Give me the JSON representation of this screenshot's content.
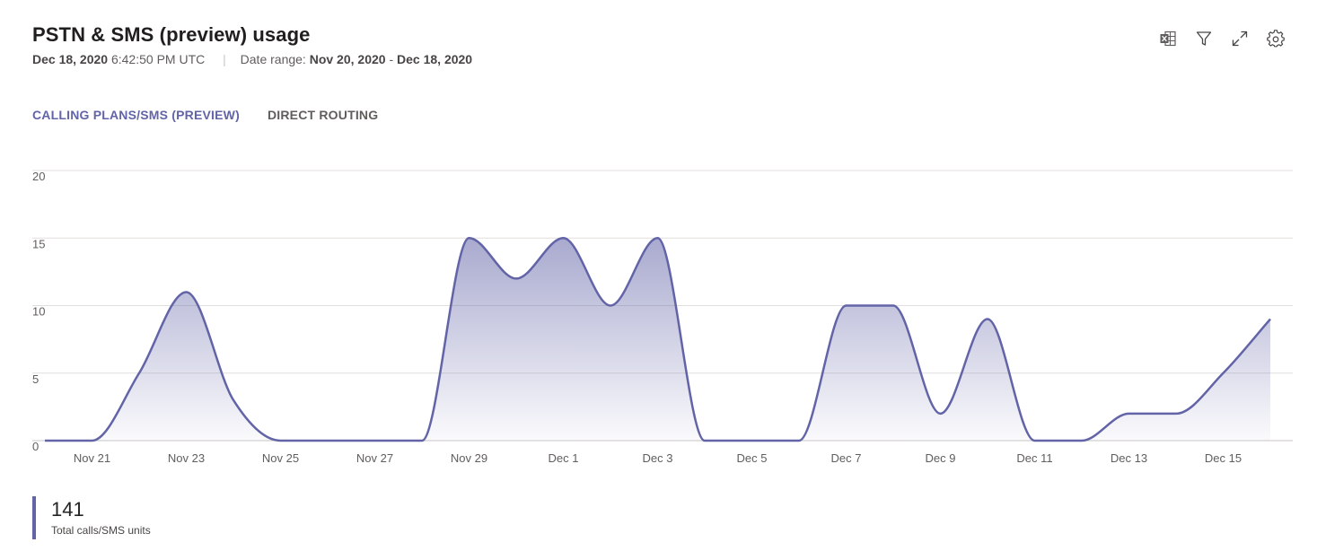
{
  "header": {
    "title": "PSTN & SMS (preview) usage",
    "timestamp_date": "Dec 18, 2020",
    "timestamp_time": "6:42:50 PM UTC",
    "date_range_label": "Date range:",
    "date_range_start": "Nov 20, 2020",
    "date_range_dash": "-",
    "date_range_end": "Dec 18, 2020"
  },
  "toolbar": {
    "icons": [
      "excel-icon",
      "filter-icon",
      "expand-icon",
      "settings-icon"
    ]
  },
  "tabs": [
    {
      "label": "CALLING PLANS/SMS (PREVIEW)",
      "active": true
    },
    {
      "label": "DIRECT ROUTING",
      "active": false
    }
  ],
  "colors": {
    "accent": "#6264a7",
    "line": "#6264a7",
    "grid": "#e1dfdd",
    "axis_text": "#605e5c"
  },
  "chart_data": {
    "type": "area",
    "x": [
      "Nov 20",
      "Nov 21",
      "Nov 22",
      "Nov 23",
      "Nov 24",
      "Nov 25",
      "Nov 26",
      "Nov 27",
      "Nov 28",
      "Nov 29",
      "Nov 30",
      "Dec 1",
      "Dec 2",
      "Dec 3",
      "Dec 4",
      "Dec 5",
      "Dec 6",
      "Dec 7",
      "Dec 8",
      "Dec 9",
      "Dec 10",
      "Dec 11",
      "Dec 12",
      "Dec 13",
      "Dec 14",
      "Dec 15",
      "Dec 16"
    ],
    "values": [
      0,
      0,
      5,
      11,
      3,
      0,
      0,
      0,
      0,
      15,
      12,
      15,
      10,
      15,
      0,
      0,
      0,
      10,
      10,
      2,
      9,
      0,
      0,
      2,
      2,
      5,
      9
    ],
    "x_tick_labels": [
      "Nov 21",
      "Nov 23",
      "Nov 25",
      "Nov 27",
      "Nov 29",
      "Dec 1",
      "Dec 3",
      "Dec 5",
      "Dec 7",
      "Dec 9",
      "Dec 11",
      "Dec 13",
      "Dec 15"
    ],
    "y_ticks": [
      0,
      5,
      10,
      15,
      20
    ],
    "ylim": [
      0,
      20
    ],
    "grid": true
  },
  "kpi": {
    "value": "141",
    "label": "Total calls/SMS units"
  }
}
